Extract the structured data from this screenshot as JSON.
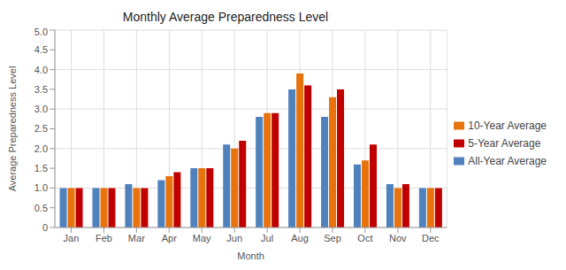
{
  "chart_data": {
    "type": "bar",
    "title": "Monthly Average Preparedness Level",
    "x_label": "Month",
    "y_label": "Average Preparedness Level",
    "categories": [
      "Jan",
      "Feb",
      "Mar",
      "Apr",
      "May",
      "Jun",
      "Jul",
      "Aug",
      "Sep",
      "Oct",
      "Nov",
      "Dec"
    ],
    "series": [
      {
        "name": "All-Year Average",
        "color": "#4f81bd",
        "values": [
          1.0,
          1.0,
          1.1,
          1.2,
          1.5,
          2.1,
          2.8,
          3.5,
          2.8,
          1.6,
          1.1,
          1.0
        ]
      },
      {
        "name": "10-Year Average",
        "color": "#e8720c",
        "values": [
          1.0,
          1.0,
          1.0,
          1.3,
          1.5,
          2.0,
          2.9,
          3.9,
          3.3,
          1.7,
          1.0,
          1.0
        ]
      },
      {
        "name": "5-Year Average",
        "color": "#c00000",
        "values": [
          1.0,
          1.0,
          1.0,
          1.4,
          1.5,
          2.2,
          2.9,
          3.6,
          3.5,
          2.1,
          1.1,
          1.0
        ]
      }
    ],
    "ylim": [
      0,
      5
    ],
    "yticks": [
      0,
      0.5,
      {
        "value": 1,
        "label": "1.0"
      },
      1.5,
      {
        "value": 2,
        "label": "2.0"
      },
      2.5,
      {
        "value": 3,
        "label": "3.0"
      },
      3.5,
      {
        "value": 4,
        "label": "4.0"
      },
      4.5,
      {
        "value": 5,
        "label": "5.0"
      }
    ],
    "grid": true,
    "legend": "right"
  }
}
